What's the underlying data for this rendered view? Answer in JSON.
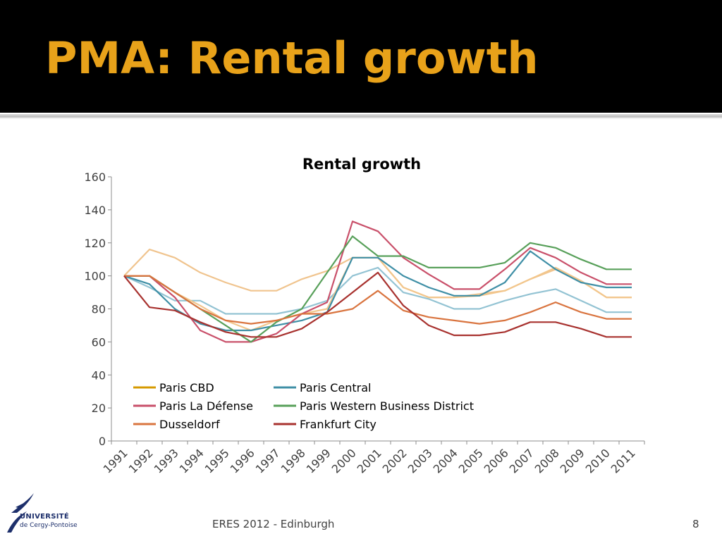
{
  "slide": {
    "title": "PMA: Rental growth",
    "footer": "ERES 2012 - Edinburgh",
    "page_number": "8",
    "logo_line1": "UNIVERSITÉ",
    "logo_line2": "de Cergy-Pontoise"
  },
  "colors": {
    "title": "#e8a21a",
    "header_bg": "#000000"
  },
  "chart_data": {
    "type": "line",
    "title": "Rental growth",
    "xlabel": "",
    "ylabel": "",
    "ylim": [
      0,
      160
    ],
    "yticks": [
      0,
      20,
      40,
      60,
      80,
      100,
      120,
      140,
      160
    ],
    "grid": false,
    "legend_placement": "bottom-left",
    "categories": [
      "1991",
      "1992",
      "1993",
      "1994",
      "1995",
      "1996",
      "1997",
      "1998",
      "1999",
      "2000",
      "2001",
      "2002",
      "2003",
      "2004",
      "2005",
      "2006",
      "2007",
      "2008",
      "2009",
      "2010",
      "2011"
    ],
    "series": [
      {
        "name": "Paris CBD",
        "color": "#d69a00",
        "in_legend": true,
        "values": [
          100,
          100,
          90,
          82,
          73,
          67,
          73,
          77,
          80,
          111,
          111,
          93,
          87,
          87,
          88,
          91,
          98,
          105,
          97,
          87,
          87
        ],
        "line_color": "#f2c68c"
      },
      {
        "name": "Paris Central",
        "color": "#3f8fa6",
        "in_legend": true,
        "values": [
          100,
          95,
          80,
          71,
          67,
          67,
          70,
          73,
          78,
          111,
          111,
          100,
          93,
          88,
          88,
          96,
          115,
          104,
          96,
          93,
          93
        ]
      },
      {
        "name": "Paris La Défense",
        "color": "#c9506a",
        "in_legend": true,
        "values": [
          100,
          100,
          87,
          67,
          60,
          60,
          65,
          77,
          84,
          133,
          127,
          111,
          101,
          92,
          92,
          104,
          117,
          111,
          102,
          95,
          95
        ]
      },
      {
        "name": "Paris Western Business District",
        "color": "#58a05a",
        "in_legend": true,
        "values": [
          100,
          100,
          90,
          80,
          70,
          60,
          72,
          80,
          102,
          124,
          112,
          112,
          105,
          105,
          105,
          108,
          120,
          117,
          110,
          104,
          104
        ]
      },
      {
        "name": "Dusseldorf",
        "color": "#d9743f",
        "in_legend": true,
        "values": [
          100,
          100,
          90,
          80,
          73,
          71,
          73,
          77,
          77,
          80,
          91,
          79,
          75,
          73,
          71,
          73,
          78,
          84,
          78,
          74,
          74
        ]
      },
      {
        "name": "Frankfurt City",
        "color": "#a8322f",
        "in_legend": true,
        "values": [
          100,
          81,
          79,
          72,
          66,
          63,
          63,
          68,
          78,
          90,
          102,
          82,
          70,
          64,
          64,
          66,
          72,
          72,
          68,
          63,
          63
        ]
      },
      {
        "name": "",
        "color": "#f0c48e",
        "in_legend": false,
        "values": [
          100,
          116,
          111,
          102,
          96,
          91,
          91,
          98,
          103,
          111,
          111,
          93,
          87,
          87,
          89,
          91,
          98,
          104,
          97,
          87,
          87
        ]
      },
      {
        "name": "",
        "color": "#93c3d3",
        "in_legend": false,
        "values": [
          100,
          93,
          85,
          85,
          77,
          77,
          77,
          80,
          85,
          100,
          105,
          90,
          86,
          80,
          80,
          85,
          89,
          92,
          85,
          78,
          78
        ]
      }
    ]
  }
}
